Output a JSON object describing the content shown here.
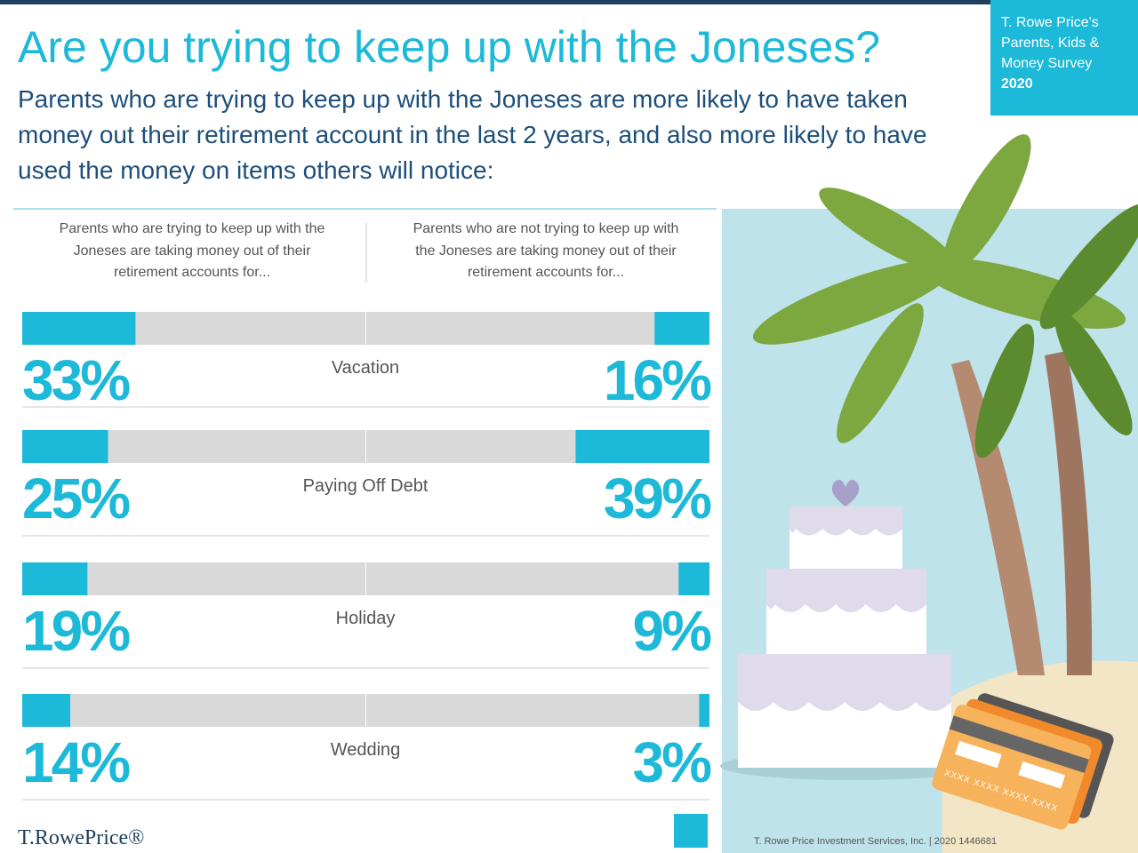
{
  "chart_data": {
    "type": "butterfly-bar",
    "title": "Are you trying to keep up with the Joneses?",
    "subtitle": "Parents who are trying to keep up with the Joneses are more likely to have taken money out their retirement account in the last 2 years, and also more likely to have used the money on items others will notice:",
    "badge": {
      "source": "T. Rowe Price's Parents, Kids & Money Survey",
      "year": "2020"
    },
    "categories": [
      "Vacation",
      "Paying Off Debt",
      "Holiday",
      "Wedding"
    ],
    "xlim": [
      0,
      100
    ],
    "track_color": "#d9d9d9",
    "series": [
      {
        "name": "Parents who are trying to keep up with the Joneses are taking money out of their retirement accounts for...",
        "color": "#1cb9d9",
        "values": [
          33,
          25,
          19,
          14
        ],
        "value_labels": [
          "33%",
          "25%",
          "19%",
          "14%"
        ]
      },
      {
        "name": "Parents who are not trying to keep up with the Joneses are taking money out of their retirement accounts for...",
        "color": "#1cb9d9",
        "values": [
          16,
          39,
          9,
          3
        ],
        "value_labels": [
          "16%",
          "39%",
          "9%",
          "3%"
        ]
      }
    ],
    "card_number": "XXXX XXXX XXXX XXXX",
    "logo": "T.RowePrice®",
    "footer": "T. Rowe Price Investment Services, Inc. | 2020 1446681"
  }
}
